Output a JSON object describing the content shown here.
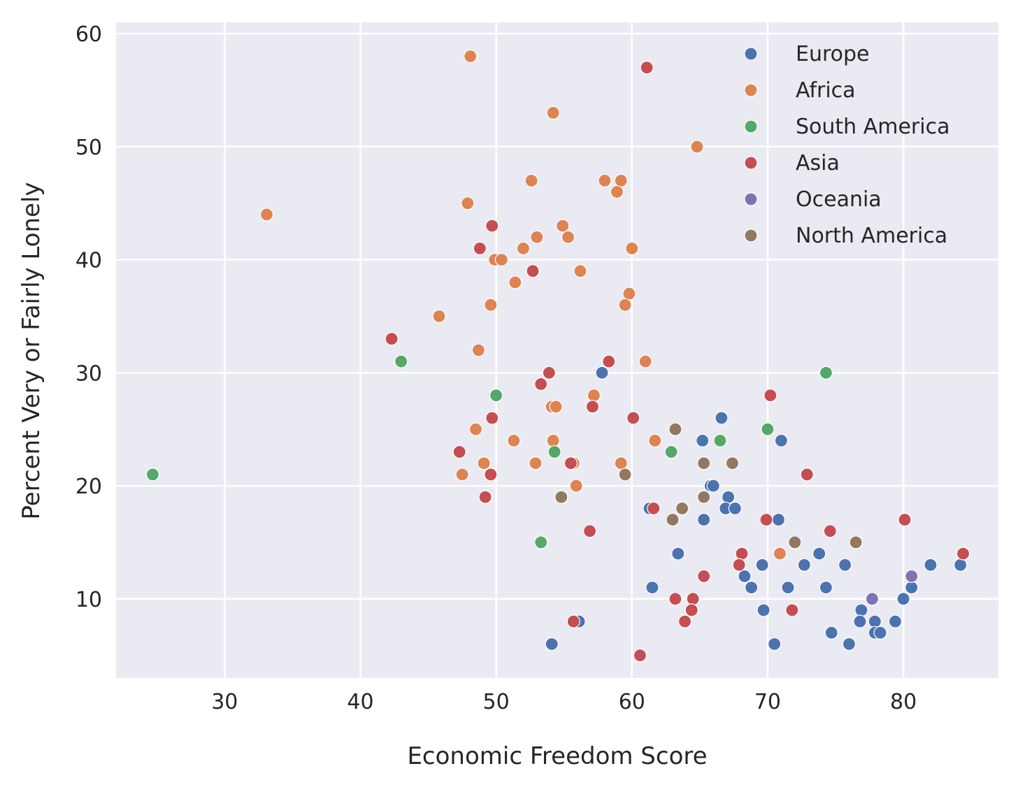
{
  "chart_data": {
    "type": "scatter",
    "title": "",
    "xlabel": "Economic Freedom Score",
    "ylabel": "Percent Very or Fairly Lonely",
    "xlim": [
      22,
      87
    ],
    "ylim": [
      3,
      61
    ],
    "xticks": [
      30,
      40,
      50,
      60,
      70,
      80
    ],
    "yticks": [
      10,
      20,
      30,
      40,
      50,
      60
    ],
    "grid": true,
    "legend_position": "top-right",
    "series": [
      {
        "name": "Europe",
        "color": "#4c72b0",
        "points": [
          [
            57.8,
            30
          ],
          [
            66.6,
            26
          ],
          [
            65.2,
            24
          ],
          [
            71.0,
            24
          ],
          [
            65.8,
            20
          ],
          [
            66.0,
            20
          ],
          [
            67.1,
            19
          ],
          [
            61.3,
            18
          ],
          [
            66.9,
            18
          ],
          [
            67.6,
            18
          ],
          [
            65.3,
            17
          ],
          [
            70.8,
            17
          ],
          [
            63.4,
            14
          ],
          [
            73.8,
            14
          ],
          [
            68.3,
            12
          ],
          [
            69.6,
            13
          ],
          [
            72.7,
            13
          ],
          [
            75.7,
            13
          ],
          [
            82.0,
            13
          ],
          [
            84.2,
            13
          ],
          [
            61.5,
            11
          ],
          [
            68.8,
            11
          ],
          [
            71.5,
            11
          ],
          [
            74.3,
            11
          ],
          [
            80.6,
            11
          ],
          [
            69.7,
            9
          ],
          [
            76.9,
            9
          ],
          [
            80.0,
            10
          ],
          [
            56.1,
            8
          ],
          [
            76.8,
            8
          ],
          [
            77.9,
            8
          ],
          [
            79.4,
            8
          ],
          [
            74.7,
            7
          ],
          [
            77.9,
            7
          ],
          [
            78.3,
            7
          ],
          [
            54.1,
            6
          ],
          [
            70.5,
            6
          ],
          [
            76.0,
            6
          ]
        ]
      },
      {
        "name": "Africa",
        "color": "#dd8452",
        "points": [
          [
            48.1,
            58
          ],
          [
            54.2,
            53
          ],
          [
            64.8,
            50
          ],
          [
            52.6,
            47
          ],
          [
            58.0,
            47
          ],
          [
            59.2,
            47
          ],
          [
            58.9,
            46
          ],
          [
            47.9,
            45
          ],
          [
            33.1,
            44
          ],
          [
            54.9,
            43
          ],
          [
            53.0,
            42
          ],
          [
            55.3,
            42
          ],
          [
            52.0,
            41
          ],
          [
            60.0,
            41
          ],
          [
            49.9,
            40
          ],
          [
            50.4,
            40
          ],
          [
            56.2,
            39
          ],
          [
            51.4,
            38
          ],
          [
            59.8,
            37
          ],
          [
            49.6,
            36
          ],
          [
            59.5,
            36
          ],
          [
            45.8,
            35
          ],
          [
            48.7,
            32
          ],
          [
            61.0,
            31
          ],
          [
            57.2,
            28
          ],
          [
            54.1,
            27
          ],
          [
            54.4,
            27
          ],
          [
            48.5,
            25
          ],
          [
            51.3,
            24
          ],
          [
            54.2,
            24
          ],
          [
            61.7,
            24
          ],
          [
            49.1,
            22
          ],
          [
            52.9,
            22
          ],
          [
            55.7,
            22
          ],
          [
            59.2,
            22
          ],
          [
            47.5,
            21
          ],
          [
            55.9,
            20
          ],
          [
            70.9,
            14
          ]
        ]
      },
      {
        "name": "South America",
        "color": "#55a868",
        "points": [
          [
            43.0,
            31
          ],
          [
            74.3,
            30
          ],
          [
            50.0,
            28
          ],
          [
            70.0,
            25
          ],
          [
            54.3,
            23
          ],
          [
            62.9,
            23
          ],
          [
            66.5,
            24
          ],
          [
            24.7,
            21
          ],
          [
            53.3,
            15
          ]
        ]
      },
      {
        "name": "Asia",
        "color": "#c44e52",
        "points": [
          [
            61.1,
            57
          ],
          [
            49.7,
            43
          ],
          [
            48.8,
            41
          ],
          [
            52.7,
            39
          ],
          [
            42.3,
            33
          ],
          [
            58.3,
            31
          ],
          [
            53.9,
            30
          ],
          [
            53.3,
            29
          ],
          [
            70.2,
            28
          ],
          [
            57.1,
            27
          ],
          [
            49.7,
            26
          ],
          [
            60.1,
            26
          ],
          [
            47.3,
            23
          ],
          [
            55.5,
            22
          ],
          [
            49.6,
            21
          ],
          [
            72.9,
            21
          ],
          [
            49.2,
            19
          ],
          [
            61.6,
            18
          ],
          [
            69.9,
            17
          ],
          [
            80.1,
            17
          ],
          [
            56.9,
            16
          ],
          [
            74.6,
            16
          ],
          [
            68.1,
            14
          ],
          [
            84.4,
            14
          ],
          [
            67.9,
            13
          ],
          [
            65.3,
            12
          ],
          [
            63.2,
            10
          ],
          [
            64.5,
            10
          ],
          [
            64.4,
            9
          ],
          [
            71.8,
            9
          ],
          [
            55.7,
            8
          ],
          [
            63.9,
            8
          ],
          [
            60.6,
            5
          ]
        ]
      },
      {
        "name": "Oceania",
        "color": "#8172b3",
        "points": [
          [
            77.7,
            10
          ],
          [
            80.6,
            12
          ]
        ]
      },
      {
        "name": "North America",
        "color": "#937860",
        "points": [
          [
            63.2,
            25
          ],
          [
            65.3,
            22
          ],
          [
            67.4,
            22
          ],
          [
            59.5,
            21
          ],
          [
            54.8,
            19
          ],
          [
            65.3,
            19
          ],
          [
            63.7,
            18
          ],
          [
            63.0,
            17
          ],
          [
            72.0,
            15
          ],
          [
            76.5,
            15
          ]
        ]
      }
    ]
  }
}
